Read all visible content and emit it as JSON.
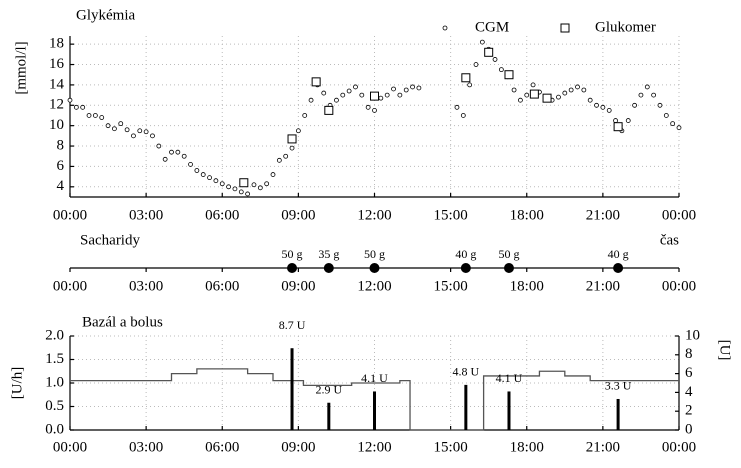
{
  "chart_data": [
    {
      "type": "scatter",
      "title": "Glykémia",
      "y_label": "[mmol/l]",
      "xlim": [
        0,
        24
      ],
      "xticks": [
        {
          "value": 0,
          "label": "00:00"
        },
        {
          "value": 3,
          "label": "03:00"
        },
        {
          "value": 6,
          "label": "06:00"
        },
        {
          "value": 9,
          "label": "09:00"
        },
        {
          "value": 12,
          "label": "12:00"
        },
        {
          "value": 15,
          "label": "15:00"
        },
        {
          "value": 18,
          "label": "18:00"
        },
        {
          "value": 21,
          "label": "21:00"
        },
        {
          "value": 24,
          "label": "00:00"
        }
      ],
      "ylim": [
        3,
        18.8
      ],
      "yticks": [
        4,
        6,
        8,
        10,
        12,
        14,
        16,
        18
      ],
      "grid": true,
      "series": [
        {
          "name": "CGM",
          "marker": "circle",
          "color": "#000000",
          "x": [
            0,
            0.25,
            0.5,
            0.75,
            1,
            1.25,
            1.5,
            1.75,
            2,
            2.25,
            2.5,
            2.75,
            3,
            3.25,
            3.5,
            3.75,
            4,
            4.25,
            4.5,
            4.75,
            5,
            5.25,
            5.5,
            5.75,
            6,
            6.25,
            6.5,
            6.75,
            7,
            7.25,
            7.5,
            7.75,
            8,
            8.25,
            8.5,
            8.75,
            9,
            9.25,
            9.5,
            9.75,
            10,
            10.25,
            10.5,
            10.75,
            11,
            11.25,
            11.5,
            11.75,
            12,
            12.25,
            12.5,
            12.75,
            13,
            13.25,
            13.5,
            13.75,
            15.25,
            15.5,
            15.75,
            16,
            16.25,
            16.5,
            16.75,
            17,
            17.25,
            17.5,
            17.75,
            18,
            18.25,
            18.5,
            18.75,
            19,
            19.25,
            19.5,
            19.75,
            20,
            20.25,
            20.5,
            20.75,
            21,
            21.25,
            21.5,
            21.75,
            22,
            22.25,
            22.5,
            22.75,
            23,
            23.25,
            23.5,
            23.75,
            24
          ],
          "values": [
            12.5,
            11.8,
            11.8,
            11.0,
            11.0,
            10.8,
            10.0,
            9.7,
            10.2,
            9.6,
            9.0,
            9.5,
            9.4,
            9.0,
            8.0,
            6.7,
            7.4,
            7.4,
            7.0,
            6.2,
            5.6,
            5.2,
            4.9,
            4.6,
            4.3,
            4.0,
            3.8,
            3.5,
            3.3,
            4.2,
            3.9,
            4.3,
            5.2,
            6.6,
            7.0,
            7.8,
            9.5,
            11.0,
            12.5,
            14.0,
            13.2,
            12.0,
            12.5,
            13.0,
            13.4,
            13.8,
            13.0,
            11.8,
            11.5,
            12.7,
            13.0,
            13.6,
            13.0,
            13.5,
            13.8,
            13.7,
            11.8,
            11.0,
            14.0,
            16.0,
            18.2,
            17.5,
            16.5,
            15.5,
            14.8,
            13.5,
            12.5,
            13.0,
            14.0,
            13.3,
            12.8,
            12.5,
            12.8,
            13.2,
            13.5,
            13.8,
            13.5,
            12.5,
            12.0,
            11.8,
            11.5,
            10.5,
            9.5,
            10.5,
            12.0,
            13.0,
            13.8,
            13.0,
            12.0,
            11.0,
            10.2,
            9.8
          ]
        },
        {
          "name": "Glukomer",
          "marker": "square",
          "color": "#000000",
          "x": [
            6.85,
            8.75,
            9.7,
            10.2,
            12.0,
            15.6,
            16.5,
            17.3,
            18.3,
            18.8,
            21.6
          ],
          "values": [
            4.4,
            8.7,
            14.3,
            11.5,
            12.9,
            14.7,
            17.2,
            15.0,
            13.1,
            12.7,
            9.9
          ]
        }
      ]
    },
    {
      "type": "event",
      "title": "Sacharidy",
      "x_label": "čas",
      "xlim": [
        0,
        24
      ],
      "xticks": [
        {
          "value": 0,
          "label": "00:00"
        },
        {
          "value": 3,
          "label": "03:00"
        },
        {
          "value": 6,
          "label": "06:00"
        },
        {
          "value": 9,
          "label": "09:00"
        },
        {
          "value": 12,
          "label": "12:00"
        },
        {
          "value": 15,
          "label": "15:00"
        },
        {
          "value": 18,
          "label": "18:00"
        },
        {
          "value": 21,
          "label": "21:00"
        },
        {
          "value": 24,
          "label": "00:00"
        }
      ],
      "x": [
        8.75,
        10.2,
        12.0,
        15.6,
        17.3,
        21.6
      ],
      "values": [
        50,
        35,
        50,
        40,
        50,
        40
      ],
      "value_labels": [
        "50 g",
        "35 g",
        "50 g",
        "40 g",
        "50 g",
        "40 g"
      ],
      "color": "#000000"
    },
    {
      "type": "combo",
      "title": "Bazál a bolus",
      "y_label": "[U/h]",
      "y2_label": "[U]",
      "xlim": [
        0,
        24
      ],
      "xticks": [
        {
          "value": 0,
          "label": "00:00"
        },
        {
          "value": 3,
          "label": "03:00"
        },
        {
          "value": 6,
          "label": "06:00"
        },
        {
          "value": 9,
          "label": "09:00"
        },
        {
          "value": 12,
          "label": "12:00"
        },
        {
          "value": 15,
          "label": "15:00"
        },
        {
          "value": 18,
          "label": "18:00"
        },
        {
          "value": 21,
          "label": "21:00"
        },
        {
          "value": 24,
          "label": "00:00"
        }
      ],
      "ylim": [
        0,
        2
      ],
      "yticks": [
        {
          "value": 0,
          "label": "0.0"
        },
        {
          "value": 0.5,
          "label": "0.5"
        },
        {
          "value": 1,
          "label": "1.0"
        },
        {
          "value": 1.5,
          "label": "1.5"
        },
        {
          "value": 2,
          "label": "2.0"
        }
      ],
      "y2lim": [
        0,
        10
      ],
      "y2ticks": [
        0,
        2,
        4,
        6,
        8,
        10
      ],
      "grid": true,
      "series": [
        {
          "type": "step",
          "color": "#555555",
          "x": [
            0,
            4,
            5,
            7,
            8,
            9.2,
            11.1,
            13.0,
            13.4,
            16.3,
            18.5,
            19.5,
            20.5,
            24
          ],
          "values": [
            1.05,
            1.2,
            1.3,
            1.2,
            1.05,
            0.95,
            1.0,
            1.05,
            0,
            1.15,
            1.25,
            1.15,
            1.05,
            1.05
          ]
        },
        {
          "type": "bar",
          "axis": "y2",
          "color": "#000000",
          "x": [
            8.75,
            10.2,
            12.0,
            15.6,
            17.3,
            21.6
          ],
          "values": [
            8.7,
            2.9,
            4.1,
            4.8,
            4.1,
            3.3
          ],
          "value_labels": [
            "8.7 U",
            "2.9 U",
            "4.1 U",
            "4.8 U",
            "4.1 U",
            "3.3 U"
          ]
        }
      ]
    }
  ]
}
